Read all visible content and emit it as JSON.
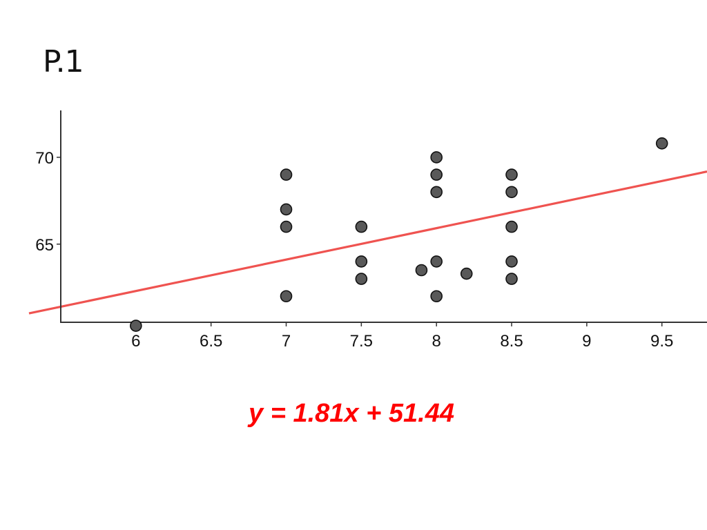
{
  "slide": {
    "title": "P.1",
    "equation": "y = 1.81x + 51.44"
  },
  "chart_data": {
    "type": "scatter",
    "title": "",
    "xlabel": "",
    "ylabel": "",
    "xlim": [
      5.5,
      9.8
    ],
    "ylim": [
      60.5,
      72.7
    ],
    "x_ticks": [
      6,
      6.5,
      7,
      7.5,
      8,
      8.5,
      9,
      9.5
    ],
    "x_tick_labels": [
      "6",
      "6.5",
      "7",
      "7.5",
      "8",
      "8.5",
      "9",
      "9.5"
    ],
    "y_ticks": [
      65,
      70
    ],
    "y_tick_labels": [
      "65",
      "70"
    ],
    "grid": false,
    "legend": "none",
    "series": [
      {
        "points": [
          [
            6,
            60.3
          ],
          [
            7,
            69
          ],
          [
            7,
            67
          ],
          [
            7,
            66
          ],
          [
            7,
            62
          ],
          [
            7.5,
            66
          ],
          [
            7.5,
            64
          ],
          [
            7.5,
            63
          ],
          [
            7.9,
            63.5
          ],
          [
            8,
            70
          ],
          [
            8,
            69
          ],
          [
            8,
            68
          ],
          [
            8,
            64
          ],
          [
            8,
            62
          ],
          [
            8.2,
            63.3
          ],
          [
            8.5,
            69
          ],
          [
            8.5,
            68
          ],
          [
            8.5,
            66
          ],
          [
            8.5,
            64
          ],
          [
            8.5,
            63
          ],
          [
            9.5,
            70.8
          ]
        ]
      }
    ],
    "trendline": {
      "slope": 1.81,
      "intercept": 51.44
    },
    "colors": {
      "point_fill": "#595959",
      "point_stroke": "#111111",
      "trendline": "#ef5350",
      "axis": "#333333",
      "equation": "#ff0000"
    }
  }
}
